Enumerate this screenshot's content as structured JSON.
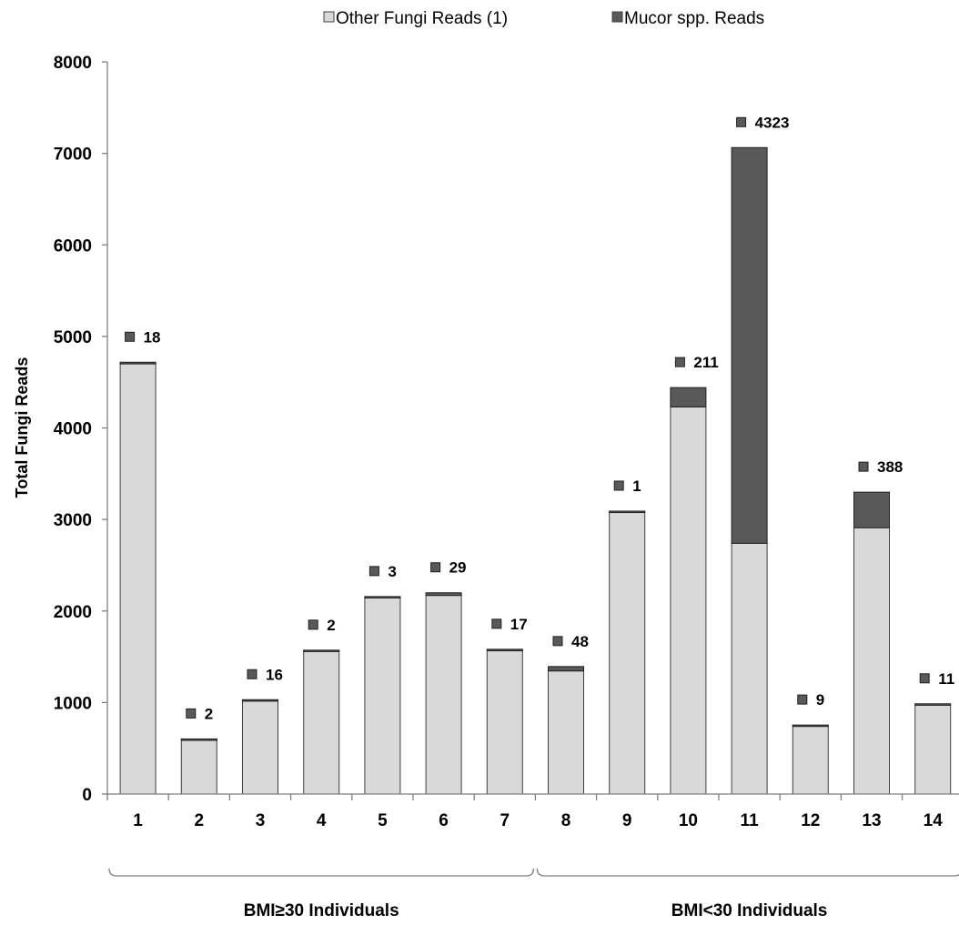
{
  "chart_data": {
    "type": "bar",
    "stacked": true,
    "categories": [
      "1",
      "2",
      "3",
      "4",
      "5",
      "6",
      "7",
      "8",
      "9",
      "10",
      "11",
      "12",
      "13",
      "14"
    ],
    "series": [
      {
        "name": "Other Fungi Reads (1)",
        "color": "#d9d9d9",
        "values": [
          4700,
          600,
          1015,
          1570,
          2155,
          2170,
          1565,
          1345,
          3090,
          4230,
          2740,
          745,
          2910,
          975
        ]
      },
      {
        "name": "Mucor spp. Reads",
        "color": "#595959",
        "values": [
          18,
          2,
          16,
          2,
          3,
          29,
          17,
          48,
          1,
          211,
          4323,
          9,
          388,
          11
        ],
        "data_labels": [
          "18",
          "2",
          "16",
          "2",
          "3",
          "29",
          "17",
          "48",
          "1",
          "211",
          "4323",
          "9",
          "388",
          "11"
        ]
      }
    ],
    "ylabel": "Total Fungi Reads",
    "ylim": [
      0,
      8000
    ],
    "yticks": [
      "0",
      "1000",
      "2000",
      "3000",
      "4000",
      "5000",
      "6000",
      "7000",
      "8000"
    ],
    "groups": [
      {
        "label": "BMI≥30 Individuals",
        "categories": [
          "1",
          "2",
          "3",
          "4",
          "5",
          "6",
          "7"
        ]
      },
      {
        "label": "BMI<30 Individuals",
        "categories": [
          "8",
          "9",
          "10",
          "11",
          "12",
          "13",
          "14"
        ]
      }
    ],
    "legend_position": "top",
    "grid": false
  }
}
